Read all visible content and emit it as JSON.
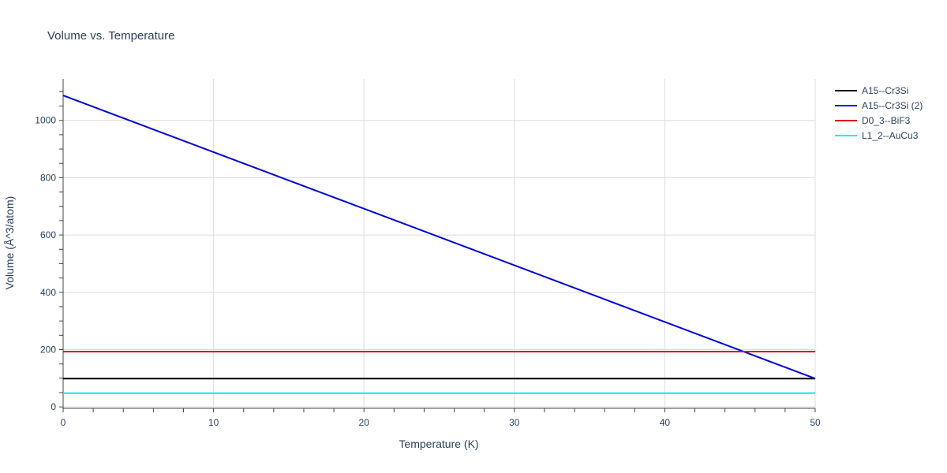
{
  "chart_data": {
    "type": "line",
    "title": "Volume vs. Temperature",
    "xlabel": "Temperature (K)",
    "ylabel": "Volume (Å^3/atom)",
    "xlim": [
      0,
      50
    ],
    "ylim": [
      -5,
      1145
    ],
    "x_ticks": [
      0,
      10,
      20,
      30,
      40,
      50
    ],
    "y_ticks": [
      0,
      200,
      400,
      600,
      800,
      1000
    ],
    "grid": true,
    "legend_position": "top-right",
    "series": [
      {
        "name": "A15--Cr3Si",
        "color": "#000000",
        "x": [
          0,
          50
        ],
        "y": [
          99,
          99
        ]
      },
      {
        "name": "A15--Cr3Si (2)",
        "color": "#0000dd",
        "x": [
          0,
          50
        ],
        "y": [
          1087,
          99
        ]
      },
      {
        "name": "D0_3--BiF3",
        "color": "#dd0000",
        "x": [
          0,
          50
        ],
        "y": [
          193,
          193
        ]
      },
      {
        "name": "L1_2--AuCu3",
        "color": "#00eeee",
        "x": [
          0,
          50
        ],
        "y": [
          48,
          48
        ]
      }
    ]
  }
}
